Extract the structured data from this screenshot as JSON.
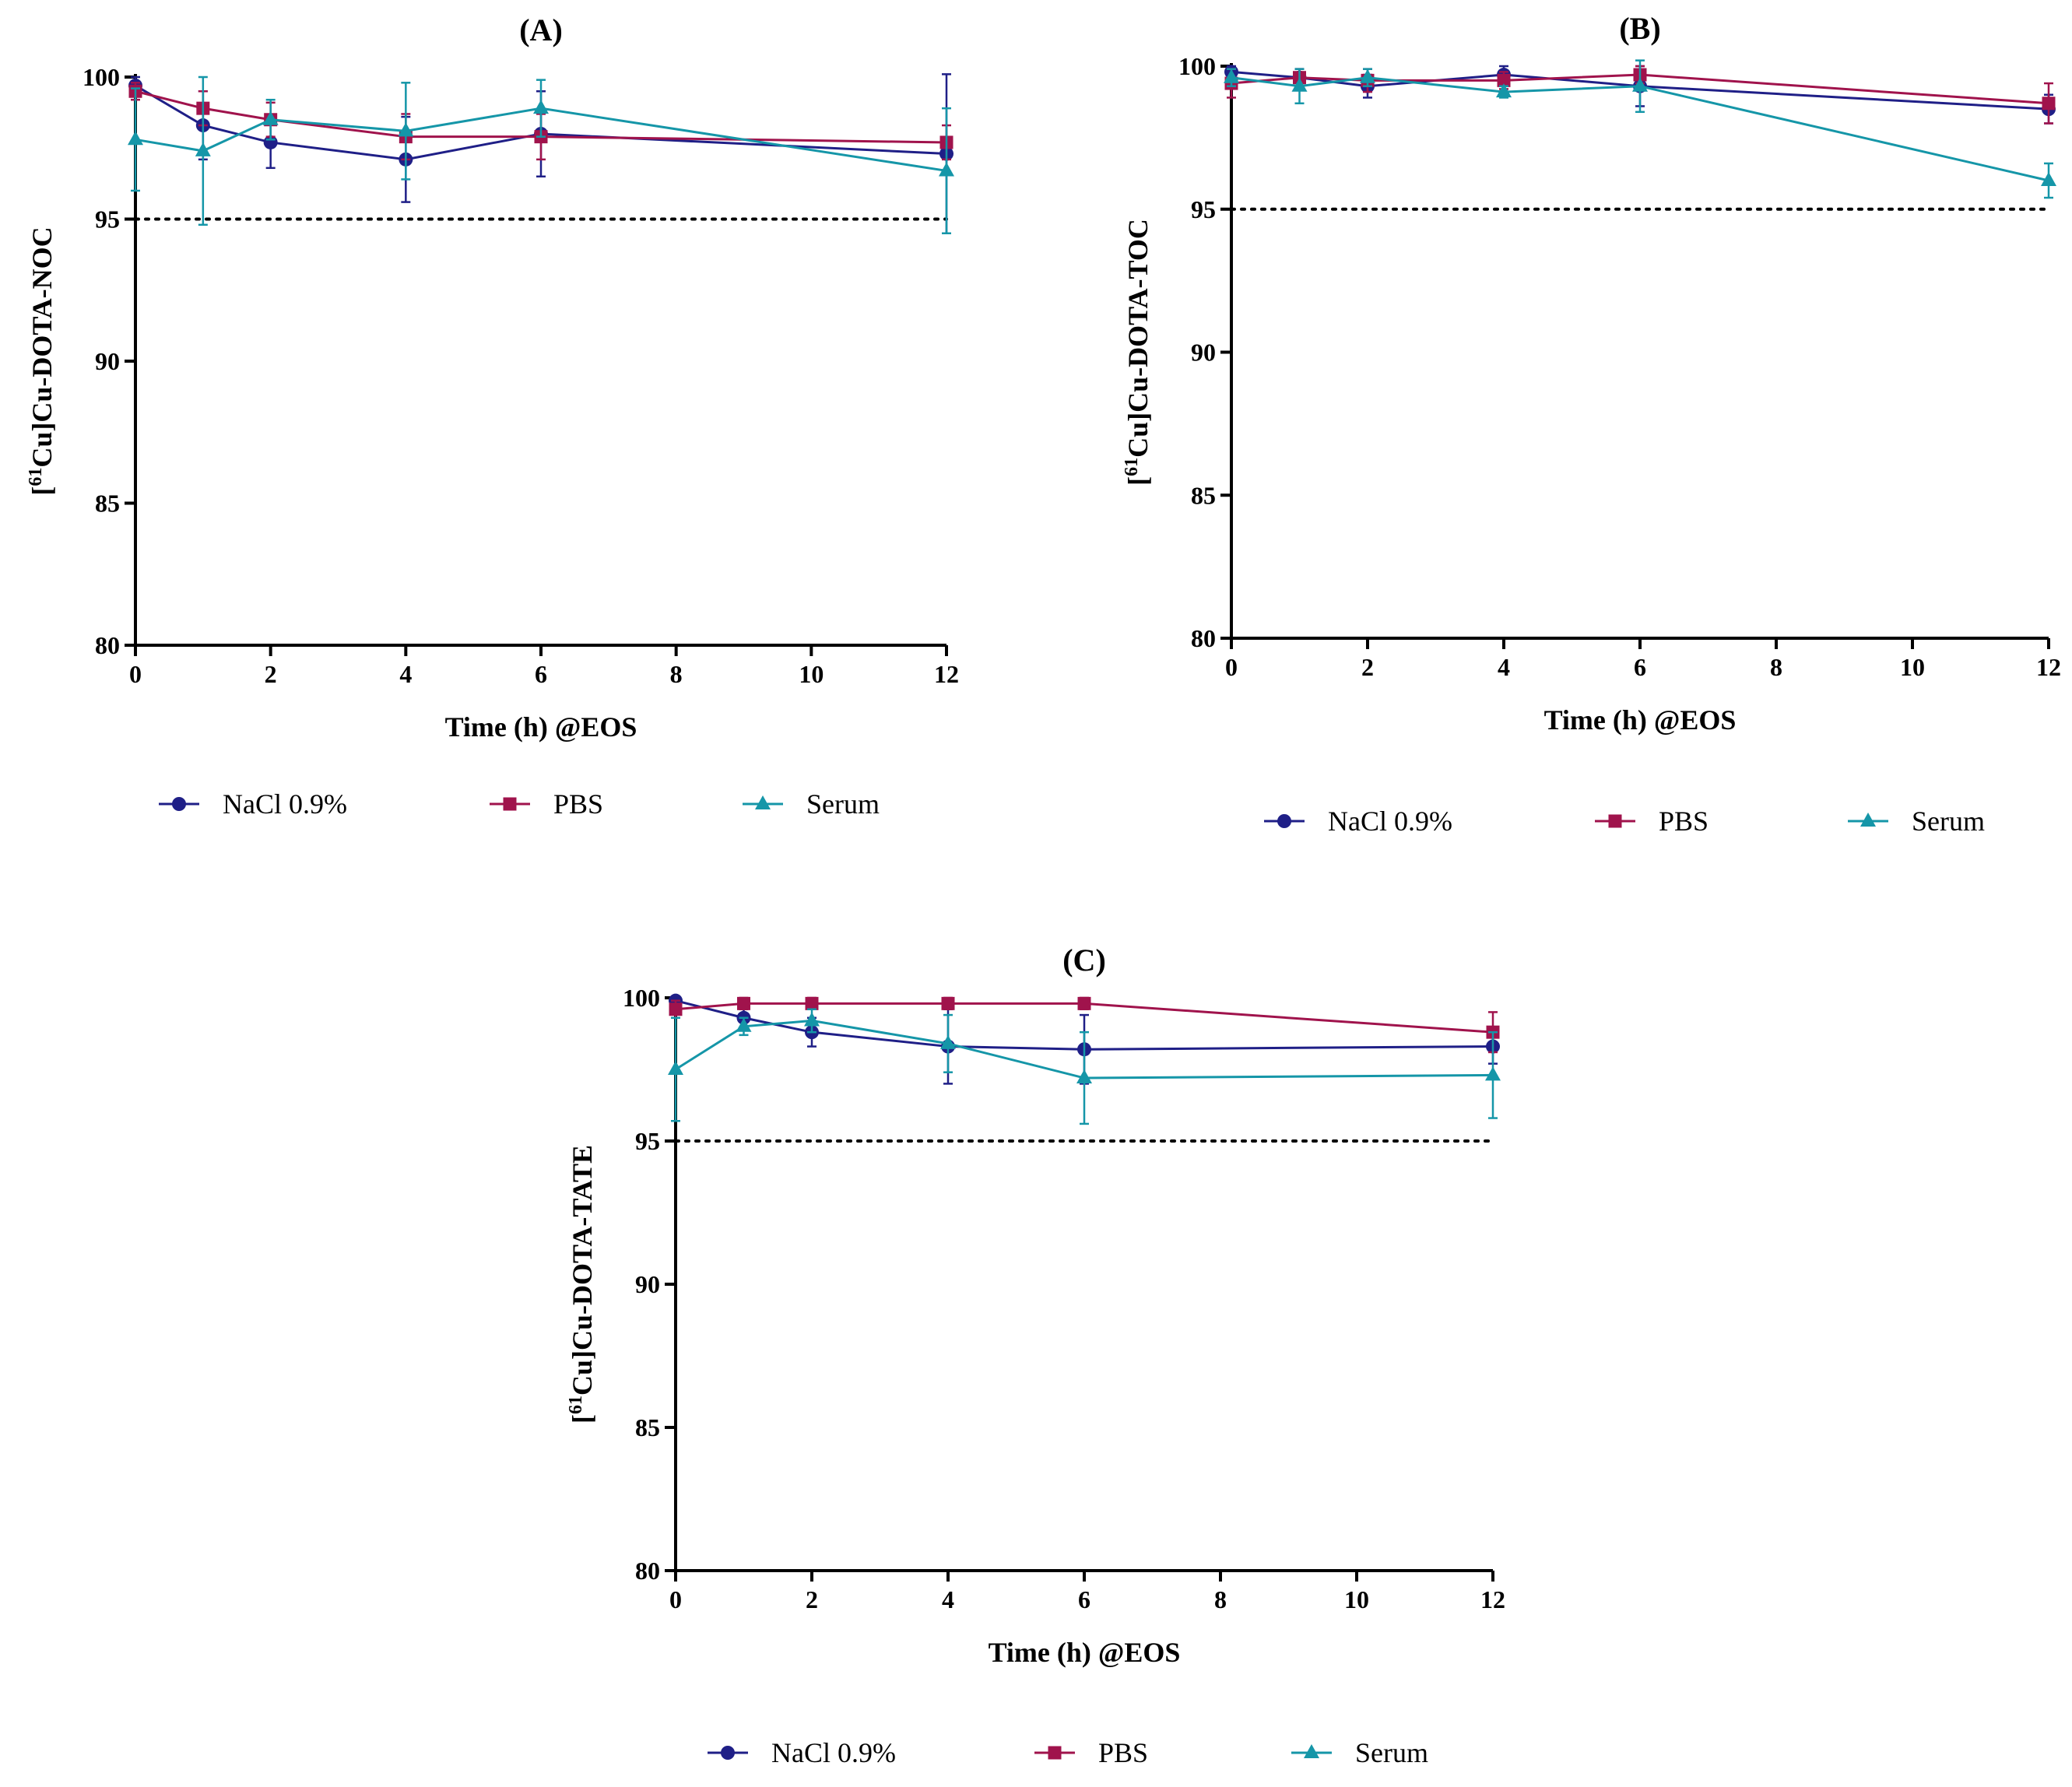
{
  "legend_labels": [
    "NaCl 0.9%",
    "PBS",
    "Serum"
  ],
  "colors": {
    "NaCl 0.9%": "#1f1f87",
    "PBS": "#a0134c",
    "Serum": "#1596a8",
    "axis": "#000000"
  },
  "chart_data": [
    {
      "panel": "(A)",
      "title": "(A)",
      "type": "line",
      "xlabel": "Time (h) @EOS",
      "ylabel": {
        "pre": "[",
        "sup": "61",
        "post": "Cu]Cu-DOTA-NOC"
      },
      "xlim": [
        0,
        12
      ],
      "ylim": [
        80,
        100
      ],
      "xticks": [
        0,
        2,
        4,
        6,
        8,
        10,
        12
      ],
      "yticks": [
        80,
        85,
        90,
        95,
        100
      ],
      "reference_line": 95,
      "series": [
        {
          "name": "NaCl 0.9%",
          "marker": "circle",
          "x": [
            0,
            1,
            2,
            4,
            6,
            12
          ],
          "y": [
            99.7,
            98.3,
            97.7,
            97.1,
            98.0,
            97.3
          ],
          "err": [
            0.3,
            1.2,
            0.9,
            1.5,
            1.5,
            2.8
          ]
        },
        {
          "name": "PBS",
          "marker": "square",
          "x": [
            0,
            1,
            2,
            4,
            6,
            12
          ],
          "y": [
            99.5,
            98.9,
            98.5,
            97.9,
            97.9,
            97.7
          ],
          "err": [
            0.3,
            0.6,
            0.6,
            0.8,
            0.8,
            0.6
          ]
        },
        {
          "name": "Serum",
          "marker": "triangle",
          "x": [
            0,
            1,
            2,
            4,
            6,
            12
          ],
          "y": [
            97.8,
            97.4,
            98.5,
            98.1,
            98.9,
            96.7
          ],
          "err": [
            1.8,
            2.6,
            0.7,
            1.7,
            1.0,
            2.2
          ]
        }
      ]
    },
    {
      "panel": "(B)",
      "title": "(B)",
      "type": "line",
      "xlabel": "Time (h) @EOS",
      "ylabel": {
        "pre": "[",
        "sup": "61",
        "post": "Cu]Cu-DOTA-TOC"
      },
      "xlim": [
        0,
        12
      ],
      "ylim": [
        80,
        100
      ],
      "xticks": [
        0,
        2,
        4,
        6,
        8,
        10,
        12
      ],
      "yticks": [
        80,
        85,
        90,
        95,
        100
      ],
      "reference_line": 95,
      "series": [
        {
          "name": "NaCl 0.9%",
          "marker": "circle",
          "x": [
            0,
            1,
            2,
            4,
            6,
            12
          ],
          "y": [
            99.8,
            99.6,
            99.3,
            99.7,
            99.3,
            98.5
          ],
          "err": [
            0.2,
            0.3,
            0.4,
            0.3,
            0.7,
            0.5
          ]
        },
        {
          "name": "PBS",
          "marker": "square",
          "x": [
            0,
            1,
            2,
            4,
            6,
            12
          ],
          "y": [
            99.4,
            99.6,
            99.5,
            99.5,
            99.7,
            98.7
          ],
          "err": [
            0.5,
            0.3,
            0.4,
            0.3,
            0.3,
            0.7
          ]
        },
        {
          "name": "Serum",
          "marker": "triangle",
          "x": [
            0,
            1,
            2,
            4,
            6,
            12
          ],
          "y": [
            99.6,
            99.3,
            99.6,
            99.1,
            99.3,
            96.0
          ],
          "err": [
            0.3,
            0.6,
            0.3,
            0.2,
            0.9,
            0.6
          ]
        }
      ]
    },
    {
      "panel": "(C)",
      "title": "(C)",
      "type": "line",
      "xlabel": "Time (h) @EOS",
      "ylabel": {
        "pre": "[",
        "sup": "61",
        "post": "Cu]Cu-DOTA-TATE"
      },
      "xlim": [
        0,
        12
      ],
      "ylim": [
        80,
        100
      ],
      "xticks": [
        0,
        2,
        4,
        6,
        8,
        10,
        12
      ],
      "yticks": [
        80,
        85,
        90,
        95,
        100
      ],
      "reference_line": 95,
      "series": [
        {
          "name": "NaCl 0.9%",
          "marker": "circle",
          "x": [
            0,
            1,
            2,
            4,
            6,
            12
          ],
          "y": [
            99.9,
            99.3,
            98.8,
            98.3,
            98.2,
            98.3
          ],
          "err": [
            0.1,
            0.4,
            0.5,
            1.3,
            1.2,
            0.6
          ]
        },
        {
          "name": "PBS",
          "marker": "square",
          "x": [
            0,
            1,
            2,
            4,
            6,
            12
          ],
          "y": [
            99.6,
            99.8,
            99.8,
            99.8,
            99.8,
            98.8
          ],
          "err": [
            0.3,
            0.2,
            0.2,
            0.2,
            0.2,
            0.7
          ]
        },
        {
          "name": "Serum",
          "marker": "triangle",
          "x": [
            0,
            1,
            2,
            4,
            6,
            12
          ],
          "y": [
            97.5,
            99.0,
            99.2,
            98.4,
            97.2,
            97.3
          ],
          "err": [
            1.8,
            0.3,
            0.4,
            1.0,
            1.6,
            1.5
          ]
        }
      ]
    }
  ]
}
